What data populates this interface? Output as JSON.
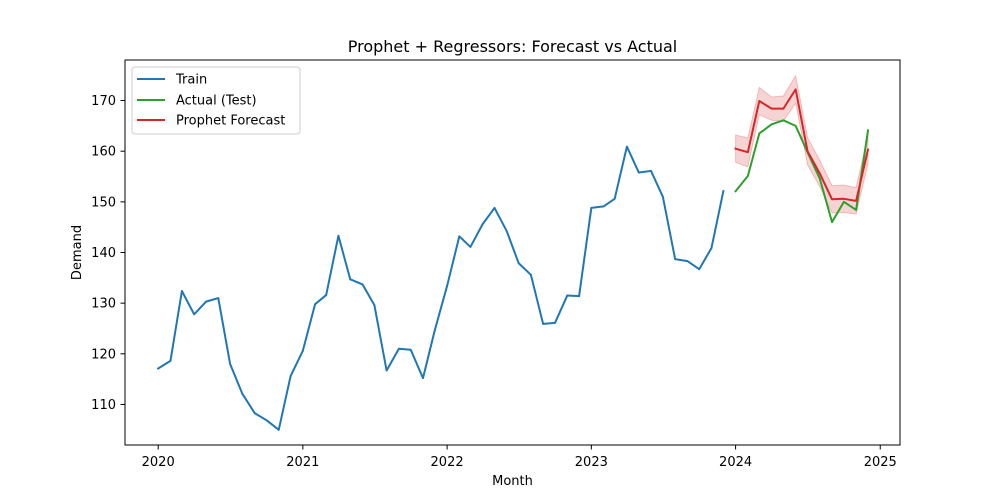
{
  "chart_data": {
    "type": "line",
    "title": "Prophet + Regressors: Forecast vs Actual",
    "xlabel": "Month",
    "ylabel": "Demand",
    "xlim": [
      "2019-10-09",
      "2025-02-20"
    ],
    "ylim": [
      102,
      178
    ],
    "x_ticks": [
      "2020-01-01",
      "2021-01-01",
      "2022-01-01",
      "2023-01-01",
      "2024-01-01",
      "2025-01-01"
    ],
    "x_tick_labels": [
      "2020",
      "2021",
      "2022",
      "2023",
      "2024",
      "2025"
    ],
    "y_ticks": [
      110,
      120,
      130,
      140,
      150,
      160,
      170
    ],
    "y_tick_labels": [
      "110",
      "120",
      "130",
      "140",
      "150",
      "160",
      "170"
    ],
    "grid": false,
    "legend_position": "upper-left",
    "series": [
      {
        "name": "Train",
        "color": "#1f77b4",
        "x": [
          "2020-01-01",
          "2020-02-01",
          "2020-03-01",
          "2020-04-01",
          "2020-05-01",
          "2020-06-01",
          "2020-07-01",
          "2020-08-01",
          "2020-09-01",
          "2020-10-01",
          "2020-11-01",
          "2020-12-01",
          "2021-01-01",
          "2021-02-01",
          "2021-03-01",
          "2021-04-01",
          "2021-05-01",
          "2021-06-01",
          "2021-07-01",
          "2021-08-01",
          "2021-09-01",
          "2021-10-01",
          "2021-11-01",
          "2021-12-01",
          "2022-01-01",
          "2022-02-01",
          "2022-03-01",
          "2022-04-01",
          "2022-05-01",
          "2022-06-01",
          "2022-07-01",
          "2022-08-01",
          "2022-09-01",
          "2022-10-01",
          "2022-11-01",
          "2022-12-01",
          "2023-01-01",
          "2023-02-01",
          "2023-03-01",
          "2023-04-01",
          "2023-05-01",
          "2023-06-01",
          "2023-07-01",
          "2023-08-01",
          "2023-09-01",
          "2023-10-01",
          "2023-11-01",
          "2023-12-01"
        ],
        "values": [
          117.1,
          118.6,
          132.4,
          127.8,
          130.3,
          131.0,
          118.0,
          112.1,
          108.3,
          106.9,
          105.0,
          115.6,
          120.6,
          129.8,
          131.6,
          143.3,
          134.7,
          133.7,
          129.6,
          116.7,
          121.0,
          120.8,
          115.2,
          124.7,
          133.4,
          143.2,
          141.1,
          145.6,
          148.8,
          144.2,
          137.9,
          135.6,
          125.9,
          126.1,
          131.5,
          131.4,
          148.8,
          149.1,
          150.6,
          160.9,
          155.8,
          156.1,
          151.0,
          138.7,
          138.3,
          136.7,
          140.9,
          152.1
        ]
      },
      {
        "name": "Actual (Test)",
        "color": "#2ca02c",
        "x": [
          "2024-01-01",
          "2024-02-01",
          "2024-03-01",
          "2024-04-01",
          "2024-05-01",
          "2024-06-01",
          "2024-07-01",
          "2024-08-01",
          "2024-09-01",
          "2024-10-01",
          "2024-11-01",
          "2024-12-01"
        ],
        "values": [
          152.1,
          155.1,
          163.5,
          165.3,
          166.1,
          165.0,
          159.8,
          154.6,
          146.0,
          150.0,
          148.4,
          164.1
        ]
      },
      {
        "name": "Prophet Forecast",
        "color": "#d62728",
        "x": [
          "2024-01-01",
          "2024-02-01",
          "2024-03-01",
          "2024-04-01",
          "2024-05-01",
          "2024-06-01",
          "2024-07-01",
          "2024-08-01",
          "2024-09-01",
          "2024-10-01",
          "2024-11-01",
          "2024-12-01"
        ],
        "values": [
          160.5,
          159.8,
          169.9,
          168.4,
          168.4,
          172.2,
          160.0,
          155.6,
          150.5,
          150.6,
          150.2,
          160.3
        ],
        "lower": [
          157.8,
          156.9,
          167.2,
          166.1,
          165.9,
          169.5,
          157.3,
          153.0,
          147.8,
          147.9,
          147.6,
          157.5
        ],
        "upper": [
          163.2,
          162.6,
          172.6,
          170.7,
          170.9,
          174.9,
          162.7,
          158.2,
          153.2,
          153.3,
          152.8,
          163.1
        ],
        "band_color": "#d62728",
        "band_opacity": 0.2
      }
    ]
  }
}
